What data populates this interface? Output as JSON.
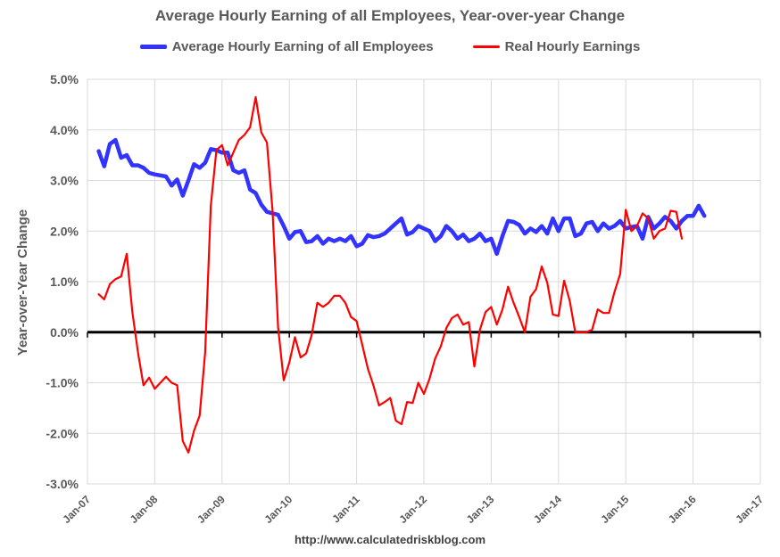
{
  "chart_data": {
    "type": "line",
    "title": "Average Hourly Earning of all Employees, Year-over-year Change",
    "xlabel": "",
    "ylabel": "Year-over-Year Change",
    "ylim": [
      -3.0,
      5.0
    ],
    "xlim": [
      "Jan-07",
      "Jan-17"
    ],
    "grid": true,
    "legend_position": "top",
    "y_ticks": [
      "5.0%",
      "4.0%",
      "3.0%",
      "2.0%",
      "1.0%",
      "0.0%",
      "-1.0%",
      "-2.0%",
      "-3.0%"
    ],
    "x_ticks": [
      "Jan-07",
      "Jan-08",
      "Jan-09",
      "Jan-10",
      "Jan-11",
      "Jan-12",
      "Jan-13",
      "Jan-14",
      "Jan-15",
      "Jan-16",
      "Jan-17"
    ],
    "series": [
      {
        "name": "Average Hourly Earning of all Employees",
        "color": "#3333ff",
        "start": "Mar-07",
        "values": [
          3.58,
          3.28,
          3.72,
          3.8,
          3.45,
          3.5,
          3.3,
          3.3,
          3.25,
          3.15,
          3.12,
          3.1,
          3.08,
          2.9,
          3.02,
          2.7,
          3.0,
          3.32,
          3.25,
          3.35,
          3.62,
          3.6,
          3.55,
          3.55,
          3.2,
          3.15,
          3.2,
          2.82,
          2.75,
          2.52,
          2.38,
          2.35,
          2.32,
          2.1,
          1.85,
          1.98,
          2.0,
          1.78,
          1.8,
          1.9,
          1.75,
          1.85,
          1.8,
          1.85,
          1.8,
          1.9,
          1.7,
          1.75,
          1.92,
          1.88,
          1.9,
          1.95,
          2.05,
          2.15,
          2.25,
          1.93,
          1.98,
          2.1,
          2.05,
          2.0,
          1.8,
          1.9,
          2.1,
          2.0,
          1.85,
          1.93,
          1.8,
          1.85,
          1.95,
          1.8,
          1.85,
          1.55,
          1.9,
          2.2,
          2.18,
          2.12,
          1.95,
          2.05,
          1.98,
          2.1,
          1.95,
          2.25,
          2.0,
          2.25,
          2.25,
          1.9,
          1.95,
          2.15,
          2.18,
          2.0,
          2.15,
          2.05,
          2.1,
          2.2,
          2.05,
          2.08,
          2.1,
          1.85,
          2.28,
          2.05,
          2.15,
          2.28,
          2.2,
          2.05,
          2.2,
          2.3,
          2.3,
          2.5,
          2.3
        ]
      },
      {
        "name": "Real Hourly Earnings",
        "color": "#ff0000",
        "start": "Mar-07",
        "values": [
          0.75,
          0.65,
          0.95,
          1.05,
          1.1,
          1.55,
          0.4,
          -0.4,
          -1.05,
          -0.9,
          -1.12,
          -1.0,
          -0.88,
          -1.0,
          -1.05,
          -2.15,
          -2.38,
          -1.95,
          -1.65,
          -0.4,
          2.5,
          3.6,
          3.7,
          3.3,
          3.55,
          3.8,
          3.9,
          4.05,
          4.65,
          3.95,
          3.75,
          2.4,
          0.1,
          -0.95,
          -0.6,
          -0.1,
          -0.5,
          -0.42,
          -0.05,
          0.58,
          0.5,
          0.58,
          0.72,
          0.72,
          0.58,
          0.3,
          0.22,
          -0.25,
          -0.72,
          -1.05,
          -1.45,
          -1.38,
          -1.3,
          -1.75,
          -1.82,
          -1.38,
          -1.4,
          -1.0,
          -1.22,
          -0.92,
          -0.52,
          -0.28,
          0.08,
          0.28,
          0.35,
          0.15,
          0.2,
          -0.68,
          0.05,
          0.4,
          0.5,
          0.15,
          0.45,
          0.9,
          0.58,
          0.3,
          0.0,
          0.7,
          0.85,
          1.3,
          0.98,
          0.35,
          0.32,
          1.02,
          0.62,
          0.0,
          0.0,
          0.0,
          0.05,
          0.45,
          0.38,
          0.38,
          0.8,
          1.15,
          2.42,
          2.0,
          2.1,
          2.35,
          2.25,
          1.85,
          2.0,
          2.05,
          2.4,
          2.38,
          1.85
        ]
      }
    ],
    "legend_entries": [
      "Average Hourly Earning of all Employees",
      "Real Hourly Earnings"
    ],
    "source_note": "http://www.calculatedriskblog.com"
  },
  "header": {
    "title": "Average Hourly Earning of all Employees, Year-over-year Change"
  },
  "legend": {
    "series_a_label": "Average Hourly Earning of all Employees",
    "series_b_label": "Real Hourly Earnings"
  },
  "footer": {
    "url": "http://www.calculatedriskblog.com"
  }
}
